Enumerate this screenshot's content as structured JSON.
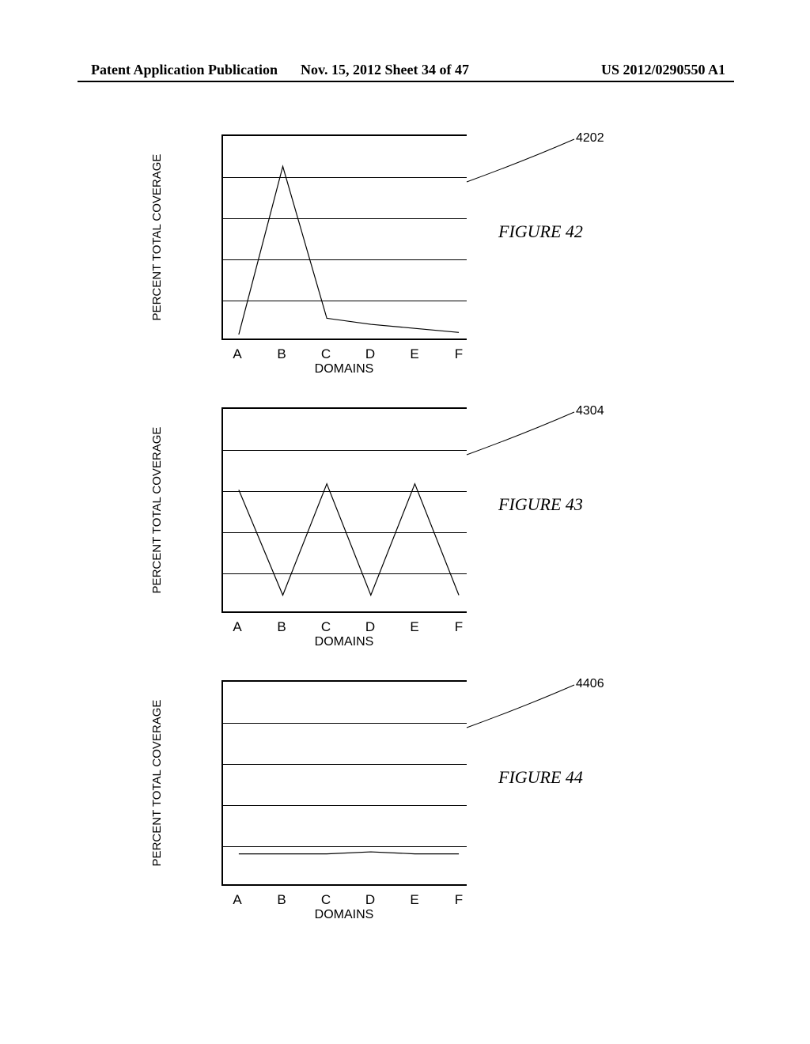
{
  "header": {
    "left": "Patent Application Publication",
    "mid": "Nov. 15, 2012  Sheet 34 of 47",
    "right": "US 2012/0290550 A1"
  },
  "axes": {
    "ylabel": "PERCENT TOTAL COVERAGE",
    "xlabel": "DOMAINS",
    "yticks": [
      20,
      40,
      60,
      80
    ],
    "ymax": 100,
    "categories": [
      "A",
      "B",
      "C",
      "D",
      "E",
      "F"
    ],
    "grid_color": "#000000",
    "line_color": "#000000",
    "line_width": 1.2,
    "tick_fontsize": 16,
    "label_fontsize": 16
  },
  "figures": [
    {
      "caption": "FIGURE 42",
      "ref": "4202",
      "values": [
        2,
        85,
        10,
        7,
        5,
        3
      ],
      "ref_from": [
        310,
        60
      ],
      "ref_to": [
        418,
        6
      ]
    },
    {
      "caption": "FIGURE 43",
      "ref": "4304",
      "values": [
        60,
        8,
        63,
        8,
        63,
        8
      ],
      "ref_from": [
        310,
        60
      ],
      "ref_to": [
        418,
        6
      ]
    },
    {
      "caption": "FIGURE 44",
      "ref": "4406",
      "values": [
        15,
        15,
        15,
        16,
        15,
        15
      ],
      "ref_from": [
        310,
        60
      ],
      "ref_to": [
        418,
        6
      ]
    }
  ]
}
